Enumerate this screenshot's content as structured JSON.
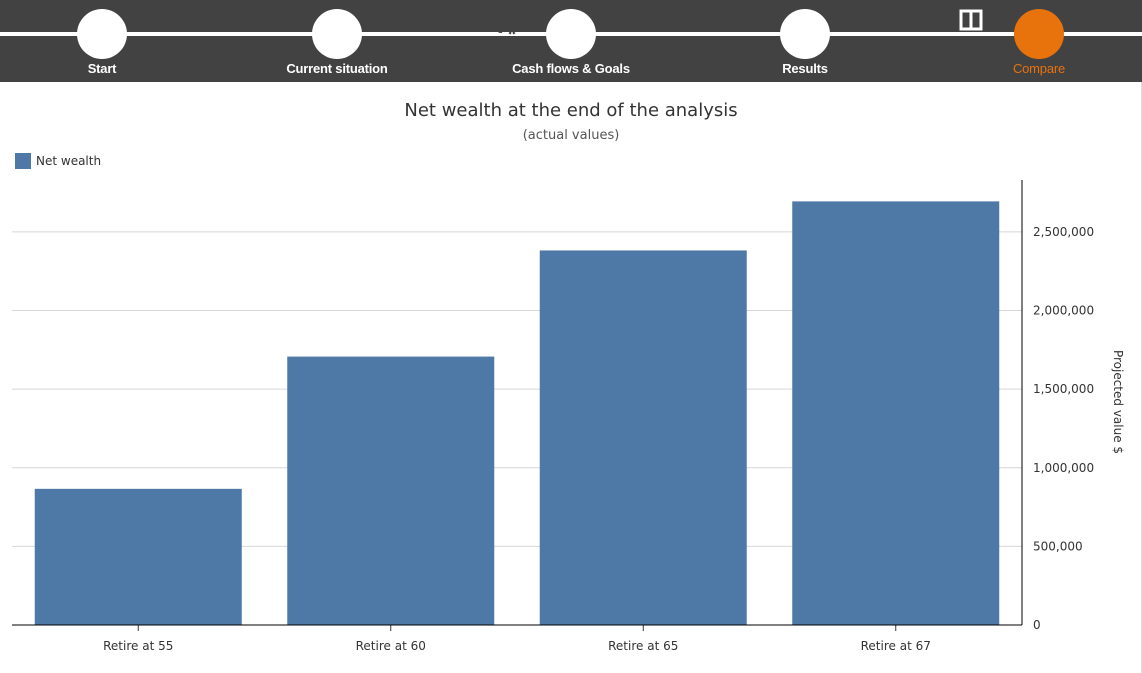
{
  "nav": {
    "steps": [
      {
        "label": "Start",
        "icon": "home-icon"
      },
      {
        "label": "Current situation",
        "icon": "users-icon"
      },
      {
        "label": "Cash flows & Goals",
        "icon": "gears-icon"
      },
      {
        "label": "Results",
        "icon": "line-chart-icon"
      },
      {
        "label": "Compare",
        "icon": "columns-icon",
        "active": true
      }
    ],
    "active_color": "#e8720c"
  },
  "chart_data": {
    "type": "bar",
    "title": "Net wealth at the end of the analysis",
    "subtitle": "(actual values)",
    "categories": [
      "Retire at 55",
      "Retire at 60",
      "Retire at 65",
      "Retire at 67"
    ],
    "series": [
      {
        "name": "Net wealth",
        "values": [
          866000,
          1707000,
          2382000,
          2694000
        ],
        "color": "#4e79a7"
      }
    ],
    "ylabel": "Projected value $",
    "yaxis_position": "right",
    "ylim": [
      0,
      2830000
    ],
    "yticks": [
      0,
      500000,
      1000000,
      1500000,
      2000000,
      2500000
    ],
    "ytick_labels": [
      "0",
      "500,000",
      "1,000,000",
      "1,500,000",
      "2,000,000",
      "2,500,000"
    ],
    "grid": true,
    "legend": "top-left"
  }
}
